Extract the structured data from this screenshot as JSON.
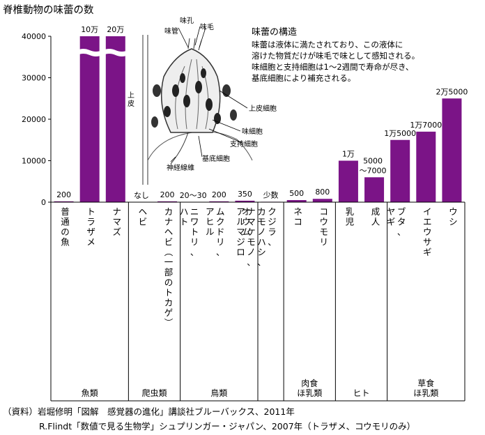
{
  "chart_data": {
    "type": "bar",
    "title": "脊椎動物の味蕾の数",
    "ylim": [
      0,
      40000
    ],
    "y_ticks": [
      "0",
      "10000",
      "20000",
      "30000",
      "40000"
    ],
    "bar_color": "#7b1487",
    "categories": [
      {
        "label": "普通の魚",
        "value": 200,
        "value_label": "200",
        "truncated": false
      },
      {
        "label": "トラザメ",
        "value": 100000,
        "value_label": "10万",
        "truncated": true
      },
      {
        "label": "ナマズ",
        "value": 200000,
        "value_label": "20万",
        "truncated": true
      },
      {
        "label": "ヘビ",
        "value": 0,
        "value_label": "なし",
        "truncated": false
      },
      {
        "label": "カナヘビ（一部のトカゲ）",
        "value": 200,
        "value_label": "200",
        "truncated": false
      },
      {
        "label": "ニワトリ、ハト",
        "value": 25,
        "value_label": "20〜30",
        "truncated": false
      },
      {
        "label": "ムクドリ、アヒル",
        "value": 200,
        "value_label": "200",
        "truncated": false
      },
      {
        "label": "オウム",
        "value": 350,
        "value_label": "350",
        "truncated": false
      },
      {
        "label": "クジラ、カモノハシ、ナマケモノ、アルマジロ",
        "value": 100,
        "value_label": "少数",
        "truncated": false
      },
      {
        "label": "ネコ",
        "value": 500,
        "value_label": "500",
        "truncated": false
      },
      {
        "label": "コウモリ",
        "value": 800,
        "value_label": "800",
        "truncated": false
      },
      {
        "label": "乳児",
        "value": 10000,
        "value_label": "1万",
        "truncated": false
      },
      {
        "label": "成人",
        "value": 6000,
        "value_label": "5000\n〜7000",
        "truncated": false
      },
      {
        "label": "ブタ、ヤギ",
        "value": 15000,
        "value_label": "1万5000",
        "truncated": false
      },
      {
        "label": "イエウサギ",
        "value": 17000,
        "value_label": "1万7000",
        "truncated": false
      },
      {
        "label": "ウシ",
        "value": 25000,
        "value_label": "2万5000",
        "truncated": false
      }
    ],
    "groups": [
      {
        "label": "魚類",
        "from": 0,
        "to": 2
      },
      {
        "label": "爬虫類",
        "from": 3,
        "to": 4
      },
      {
        "label": "鳥類",
        "from": 5,
        "to": 7
      },
      {
        "label": "",
        "from": 8,
        "to": 8
      },
      {
        "label": "肉食\nほ乳類",
        "from": 9,
        "to": 10
      },
      {
        "label": "ヒト",
        "from": 11,
        "to": 12
      },
      {
        "label": "草食\nほ乳類",
        "from": 13,
        "to": 15
      }
    ]
  },
  "diagram": {
    "labels": [
      "味孔",
      "味毛",
      "味管",
      "上皮",
      "上皮細胞",
      "味細胞",
      "支持細胞",
      "基底細胞",
      "神経線維"
    ],
    "title": "味蕾の構造",
    "text": [
      "味蕾は液体に満たされており、この液体に",
      "溶けた物質だけが味毛で味として感知される。",
      "味細胞と支持細胞は1〜2週間で寿命が尽き、",
      "基底細胞により補充される。"
    ]
  },
  "sources": {
    "line1": "（資料）岩堀修明「図解　感覚器の進化」講談社ブルーバックス、2011年",
    "line2": "R.Flindt「数値で見る生物学」シュプリンガー・ジャパン、2007年（トラザメ、コウモリのみ）"
  }
}
